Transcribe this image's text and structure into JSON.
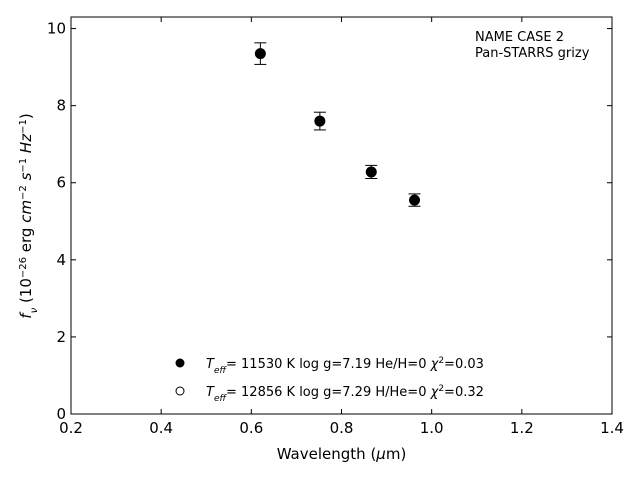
{
  "chart_data": {
    "type": "scatter",
    "title": "",
    "annotation": [
      "NAME CASE 2",
      "Pan-STARRS grizy"
    ],
    "xlabel": "Wavelength (μm)",
    "ylabel": "f_ν (10^-26 erg cm^-2 s^-1 Hz^-1)",
    "xlim": [
      0.2,
      1.4
    ],
    "ylim": [
      0,
      10.3
    ],
    "xticks": [
      0.2,
      0.4,
      0.6,
      0.8,
      1.0,
      1.2,
      1.4
    ],
    "xtick_labels": [
      "0.2",
      "0.4",
      "0.6",
      "0.8",
      "1.0",
      "1.2",
      "1.4"
    ],
    "yticks": [
      0,
      2,
      4,
      6,
      8,
      10
    ],
    "ytick_labels": [
      "0",
      "2",
      "4",
      "6",
      "8",
      "10"
    ],
    "grid": false,
    "legend_position": "bottom-center",
    "series": [
      {
        "marker": "filled",
        "x": [
          0.62,
          0.752,
          0.866,
          0.962
        ],
        "y": [
          9.35,
          7.6,
          6.28,
          5.55
        ],
        "yerr": [
          0.28,
          0.23,
          0.17,
          0.16
        ],
        "legend": {
          "teff_symbol": "T",
          "teff_sub": "eff",
          "teff_value": "= 11530 K",
          "logg": "log g=7.19",
          "comp": "He/H=0",
          "chi_symbol": "χ",
          "chi_value": "=0.03"
        }
      },
      {
        "marker": "open",
        "x": [
          0.62,
          0.752,
          0.866,
          0.962
        ],
        "y": [
          9.35,
          7.6,
          6.28,
          5.55
        ],
        "legend": {
          "teff_symbol": "T",
          "teff_sub": "eff",
          "teff_value": "= 12856 K",
          "logg": "log g=7.29",
          "comp": "H/He=0",
          "chi_symbol": "χ",
          "chi_value": "=0.32"
        }
      }
    ]
  }
}
